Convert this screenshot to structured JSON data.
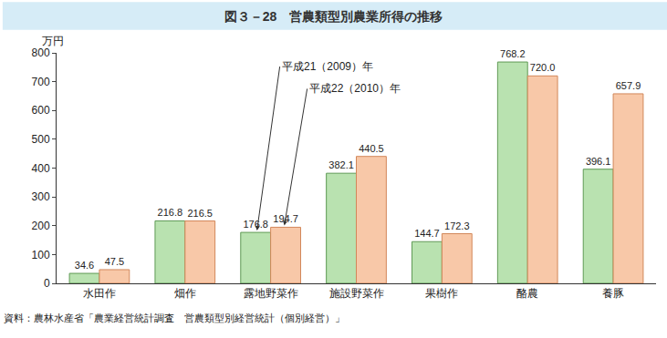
{
  "chart_data": {
    "type": "bar",
    "title": "図３－28　営農類型別農業所得の推移",
    "y_label": "万円",
    "note": "資料：農林水産省「農業経営統計調査　営農類型別経営統計（個別経営）」",
    "categories": [
      "水田作",
      "畑作",
      "露地野菜作",
      "施設野菜作",
      "果樹作",
      "酪農",
      "養豚"
    ],
    "series": [
      {
        "name": "平成21（2009）年",
        "color": "#b9e2b0",
        "values": [
          34.6,
          216.8,
          176.8,
          382.1,
          144.7,
          768.2,
          396.1
        ],
        "value_labels": [
          "34.6",
          "216.8",
          "176.8",
          "382.1",
          "144.7",
          "768.2",
          "396.1"
        ]
      },
      {
        "name": "平成22（2010）年",
        "color": "#f8c8a8",
        "values": [
          47.5,
          216.5,
          194.7,
          440.5,
          172.3,
          720.0,
          657.9
        ],
        "value_labels": [
          "47.5",
          "216.5",
          "194.7",
          "440.5",
          "172.3",
          "720.0",
          "657.9"
        ]
      }
    ],
    "ylim": [
      0,
      800
    ],
    "yticks": [
      0,
      100,
      200,
      300,
      400,
      500,
      600,
      700,
      800
    ],
    "grid": false,
    "data_labels": true
  }
}
